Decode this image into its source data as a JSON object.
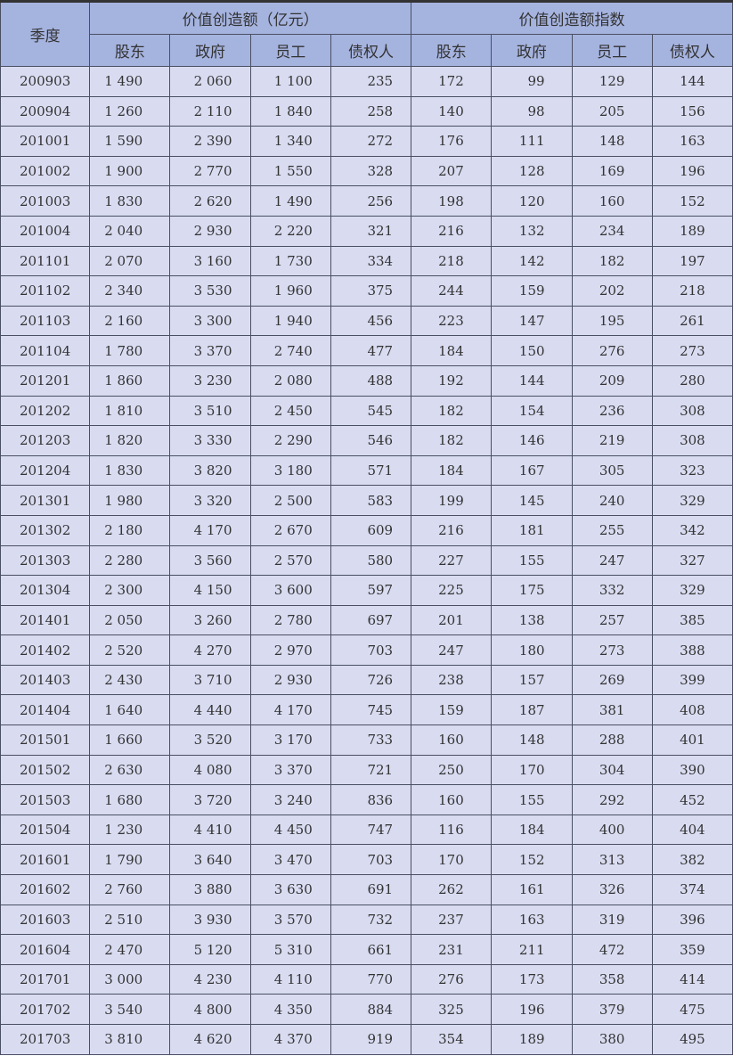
{
  "header": {
    "season": "季度",
    "group1": "价值创造额（亿元）",
    "group2": "价值创造额指数",
    "columns": [
      "股东",
      "政府",
      "员工",
      "债权人",
      "股东",
      "政府",
      "员工",
      "债权人"
    ]
  },
  "rows": [
    [
      "200903",
      "1 490",
      "2 060",
      "1 100",
      "235",
      "172",
      "99",
      "129",
      "144"
    ],
    [
      "200904",
      "1 260",
      "2 110",
      "1 840",
      "258",
      "140",
      "98",
      "205",
      "156"
    ],
    [
      "201001",
      "1 590",
      "2 390",
      "1 340",
      "272",
      "176",
      "111",
      "148",
      "163"
    ],
    [
      "201002",
      "1 900",
      "2 770",
      "1 550",
      "328",
      "207",
      "128",
      "169",
      "196"
    ],
    [
      "201003",
      "1 830",
      "2 620",
      "1 490",
      "256",
      "198",
      "120",
      "160",
      "152"
    ],
    [
      "201004",
      "2 040",
      "2 930",
      "2 220",
      "321",
      "216",
      "132",
      "234",
      "189"
    ],
    [
      "201101",
      "2 070",
      "3 160",
      "1 730",
      "334",
      "218",
      "142",
      "182",
      "197"
    ],
    [
      "201102",
      "2 340",
      "3 530",
      "1 960",
      "375",
      "244",
      "159",
      "202",
      "218"
    ],
    [
      "201103",
      "2 160",
      "3 300",
      "1 940",
      "456",
      "223",
      "147",
      "195",
      "261"
    ],
    [
      "201104",
      "1 780",
      "3 370",
      "2 740",
      "477",
      "184",
      "150",
      "276",
      "273"
    ],
    [
      "201201",
      "1 860",
      "3 230",
      "2 080",
      "488",
      "192",
      "144",
      "209",
      "280"
    ],
    [
      "201202",
      "1 810",
      "3 510",
      "2 450",
      "545",
      "182",
      "154",
      "236",
      "308"
    ],
    [
      "201203",
      "1 820",
      "3 330",
      "2 290",
      "546",
      "182",
      "146",
      "219",
      "308"
    ],
    [
      "201204",
      "1 830",
      "3 820",
      "3 180",
      "571",
      "184",
      "167",
      "305",
      "323"
    ],
    [
      "201301",
      "1 980",
      "3 320",
      "2 500",
      "583",
      "199",
      "145",
      "240",
      "329"
    ],
    [
      "201302",
      "2 180",
      "4 170",
      "2 670",
      "609",
      "216",
      "181",
      "255",
      "342"
    ],
    [
      "201303",
      "2 280",
      "3 560",
      "2 570",
      "580",
      "227",
      "155",
      "247",
      "327"
    ],
    [
      "201304",
      "2 300",
      "4 150",
      "3 600",
      "597",
      "225",
      "175",
      "332",
      "329"
    ],
    [
      "201401",
      "2 050",
      "3 260",
      "2 780",
      "697",
      "201",
      "138",
      "257",
      "385"
    ],
    [
      "201402",
      "2 520",
      "4 270",
      "2 970",
      "703",
      "247",
      "180",
      "273",
      "388"
    ],
    [
      "201403",
      "2 430",
      "3 710",
      "2 930",
      "726",
      "238",
      "157",
      "269",
      "399"
    ],
    [
      "201404",
      "1 640",
      "4 440",
      "4 170",
      "745",
      "159",
      "187",
      "381",
      "408"
    ],
    [
      "201501",
      "1 660",
      "3 520",
      "3 170",
      "733",
      "160",
      "148",
      "288",
      "401"
    ],
    [
      "201502",
      "2 630",
      "4 080",
      "3 370",
      "721",
      "250",
      "170",
      "304",
      "390"
    ],
    [
      "201503",
      "1 680",
      "3 720",
      "3 240",
      "836",
      "160",
      "155",
      "292",
      "452"
    ],
    [
      "201504",
      "1 230",
      "4 410",
      "4 450",
      "747",
      "116",
      "184",
      "400",
      "404"
    ],
    [
      "201601",
      "1 790",
      "3 640",
      "3 470",
      "703",
      "170",
      "152",
      "313",
      "382"
    ],
    [
      "201602",
      "2 760",
      "3 880",
      "3 630",
      "691",
      "262",
      "161",
      "326",
      "374"
    ],
    [
      "201603",
      "2 510",
      "3 930",
      "3 570",
      "732",
      "237",
      "163",
      "319",
      "396"
    ],
    [
      "201604",
      "2 470",
      "5 120",
      "5 310",
      "661",
      "231",
      "211",
      "472",
      "359"
    ],
    [
      "201701",
      "3 000",
      "4 230",
      "4 110",
      "770",
      "276",
      "173",
      "358",
      "414"
    ],
    [
      "201702",
      "3 540",
      "4 800",
      "4 350",
      "884",
      "325",
      "196",
      "379",
      "475"
    ],
    [
      "201703",
      "3 810",
      "4 620",
      "4 370",
      "919",
      "354",
      "189",
      "380",
      "495"
    ]
  ],
  "colors": {
    "header_bg": "#a5b3df",
    "row_bg": "#d9dcf1",
    "border": "#4a4f63"
  }
}
